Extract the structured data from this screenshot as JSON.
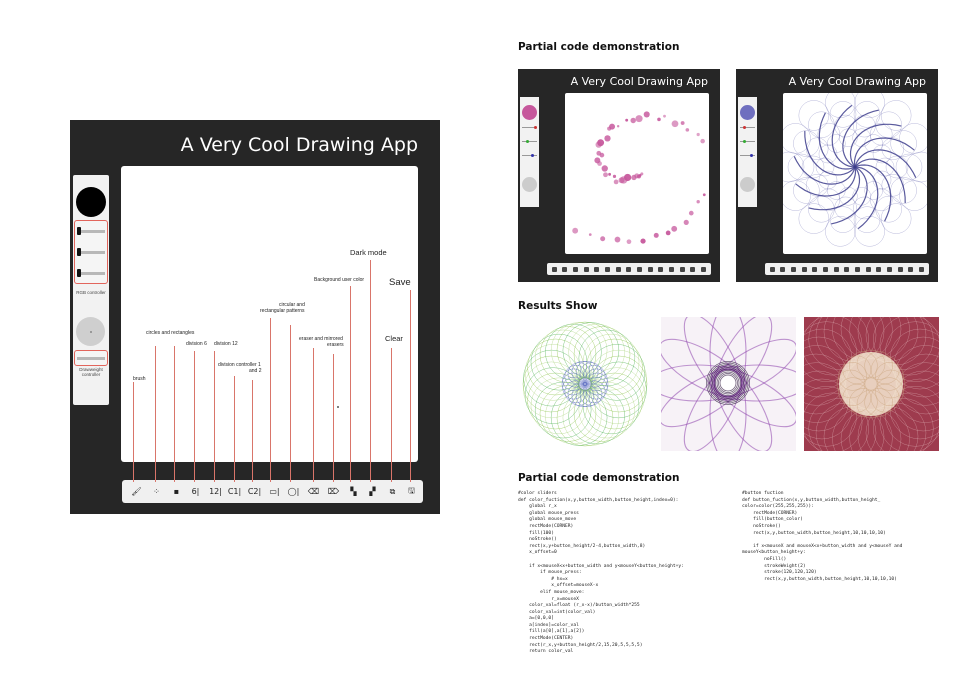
{
  "app": {
    "title": "A Very Cool Drawing App",
    "side_captions": {
      "rgb": "RGB controller",
      "weight": "Drawweight controller"
    }
  },
  "toolbar": {
    "tools": [
      {
        "name": "brush-tool",
        "glyph": "🖌"
      },
      {
        "name": "circles-rectangles-tool",
        "glyph": "⁘"
      },
      {
        "name": "squares-tool",
        "glyph": "▪"
      },
      {
        "name": "division-6-tool",
        "glyph": "6|"
      },
      {
        "name": "division-12-tool",
        "glyph": "12|"
      },
      {
        "name": "division-controller-1-tool",
        "glyph": "C1|"
      },
      {
        "name": "division-controller-2-tool",
        "glyph": "C2|"
      },
      {
        "name": "rectangular-pattern-tool",
        "glyph": "▭|"
      },
      {
        "name": "circular-pattern-tool",
        "glyph": "◯|"
      },
      {
        "name": "eraser-tool",
        "glyph": "⌫"
      },
      {
        "name": "mirrored-eraser-tool",
        "glyph": "⌦"
      },
      {
        "name": "background-color-tool",
        "glyph": "▚"
      },
      {
        "name": "dark-mode-tool",
        "glyph": "▞"
      },
      {
        "name": "clear-tool",
        "glyph": "⧉"
      },
      {
        "name": "save-tool",
        "glyph": "🖫"
      }
    ]
  },
  "callouts": {
    "brush": "brush",
    "circles": "circles and rectangles",
    "div6": "division 6",
    "div12": "division 12",
    "divctrl_1": "division controller 1",
    "divctrl_2": "and 2",
    "circrect_1": "circular and",
    "circrect_2": "rectangular patterns",
    "eraser_1": "eraser and mirrored",
    "eraser_2": "erasers",
    "bgcolor": "Background user color",
    "darkmode": "Dark mode",
    "save": "Save",
    "clear": "Clear"
  },
  "sections": {
    "partial_top": "Partial code demonstration",
    "results": "Results Show",
    "partial_bottom": "Partial code demonstration"
  },
  "mini_apps": [
    {
      "title": "A Very Cool Drawing App",
      "swatch_color": "#c6579c"
    },
    {
      "title": "A Very Cool Drawing App",
      "swatch_color": "#6f6fbf"
    }
  ],
  "code": {
    "left": "#color sliders\ndef color_fuction(x,y,button_width,button_height,index=0):\n    global r_x\n    global mouse_press\n    global mouse_move\n    rectMode(CORNER)\n    fill(100)\n    noStroke()\n    rect(x,y+button_height/2-4,button_width,8)\n    x_offset=0\n\n    if x<mouseX<x+button_width and y<mouseY<button_height+y:\n        if mouse_press:\n            # hx=x\n            x_offset=mouseX-x\n        elif mouse_move:\n            r_x=mouseX\n    color_val=float (r_x-x)/button_width*255\n    color_val=int(color_val)\n    a=[0,0,0]\n    a[index]=color_val\n    fill(a[0],a[1],a[2])\n    rectMode(CENTER)\n    rect(r_x,y+button_height/2,15,20,5,5,5,5)\n    return color_val",
    "right": "#button fuction\ndef button_fuction(x,y,button_width,button_height_\ncolor=color(255,255,255)):\n    rectMode(CORNER)\n    fill(button_color)\n    noStroke()\n    rect(x,y,button_width,button_height,10,10,10,10)\n\n    if x<mouseX and mouseX<x+button_width and y<mouseY and\nmouseY<button_height+y:\n        noFill()\n        strokeWeight(2)\n        stroke(120,120,120)\n        rect(x,y,button_width,button_height,10,10,10,10)"
  },
  "colors": {
    "app_bg": "#262626",
    "callout_line": "#d9756a",
    "pink_dots": "#c6579c",
    "blue_spiro": "#4a4aa0"
  }
}
